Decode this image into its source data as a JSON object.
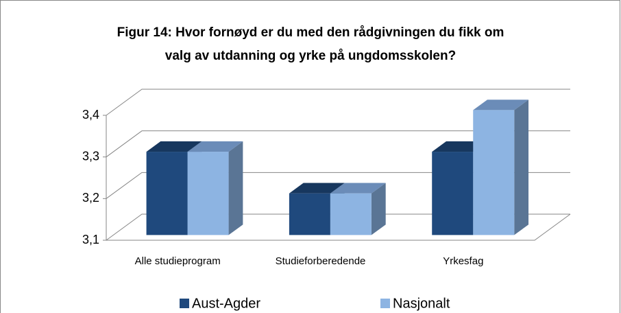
{
  "chart_data": {
    "type": "bar3d",
    "title": [
      "Figur 14: Hvor fornøyd er du med den rådgivningen du fikk om",
      "valg av utdanning og yrke på ungdomsskolen?"
    ],
    "categories": [
      "Alle studieprogram",
      "Studieforberedende",
      "Yrkesfag"
    ],
    "series": [
      {
        "name": "Aust-Agder",
        "color": "#1f497d",
        "top": "#17375e",
        "side": "#16365c",
        "values": [
          3.3,
          3.2,
          3.3
        ]
      },
      {
        "name": "Nasjonalt",
        "color": "#8db4e2",
        "top": "#6b8cb8",
        "side": "#5a7595",
        "values": [
          3.3,
          3.2,
          3.4
        ]
      }
    ],
    "ylim": [
      3.1,
      3.4
    ],
    "yticks": [
      {
        "value": 3.1,
        "label": "3,1"
      },
      {
        "value": 3.2,
        "label": "3,2"
      },
      {
        "value": 3.3,
        "label": "3,3"
      },
      {
        "value": 3.4,
        "label": "3,4"
      }
    ],
    "grid": true,
    "legend": "bottom"
  }
}
